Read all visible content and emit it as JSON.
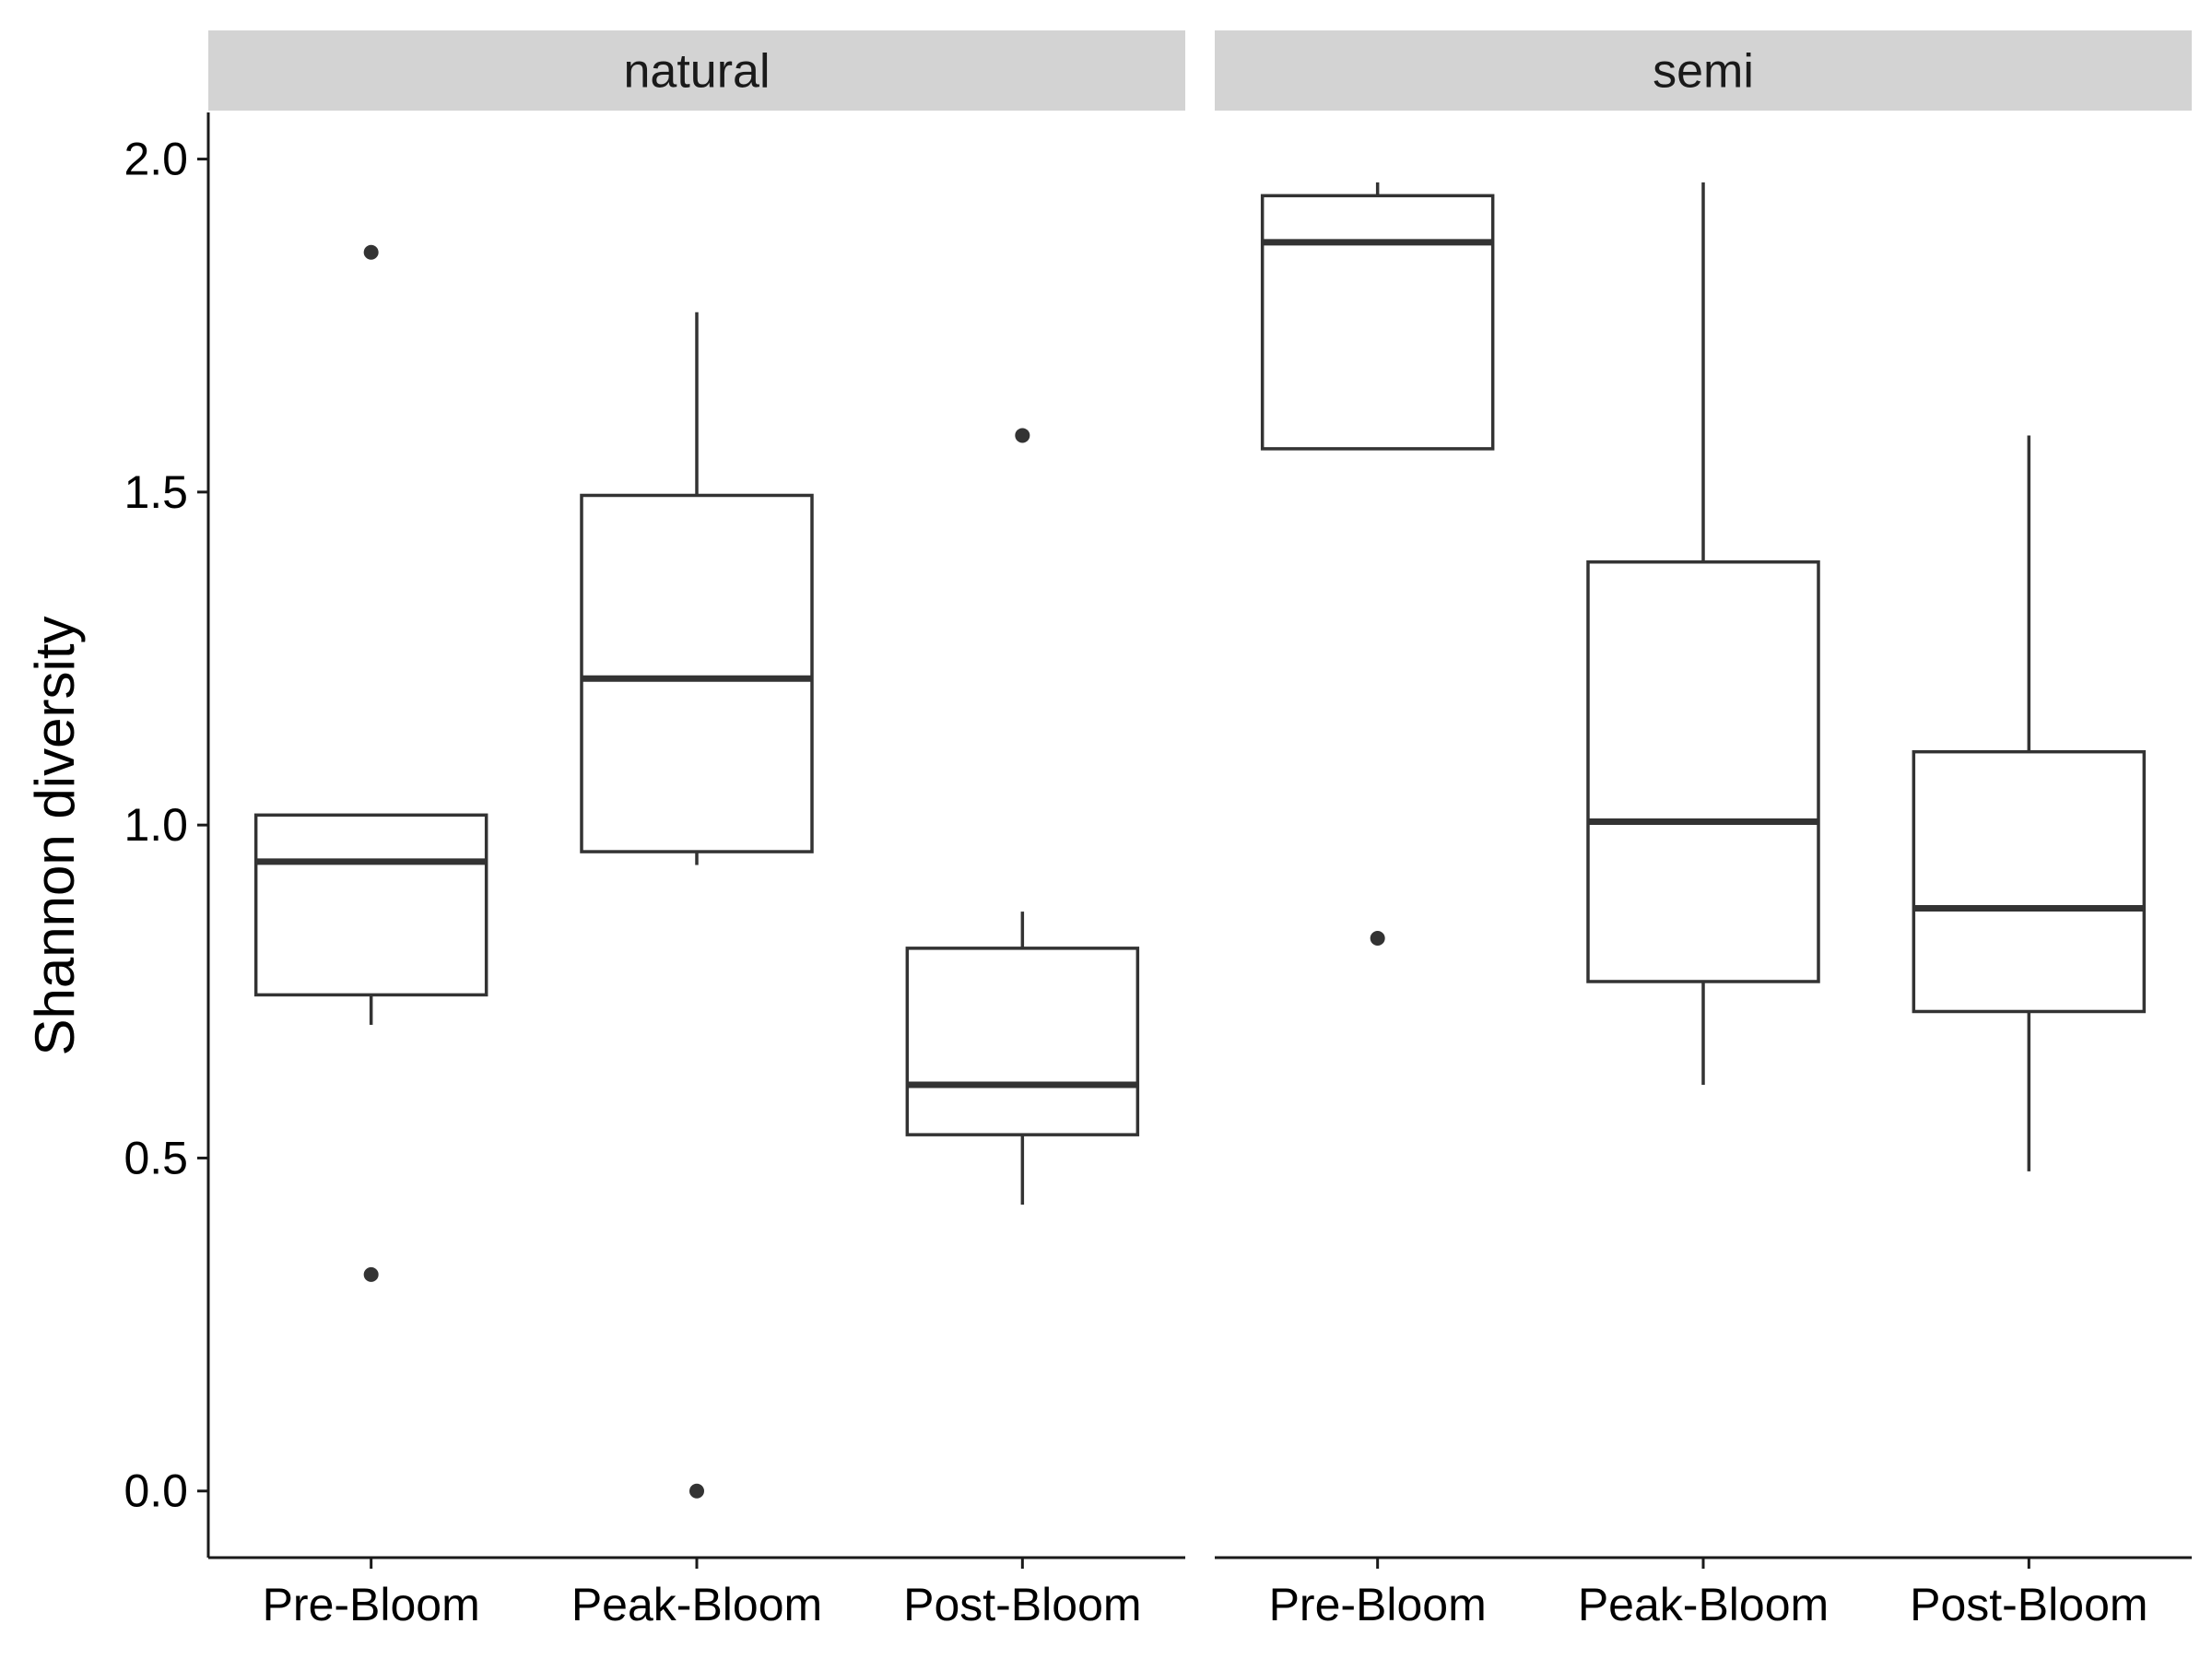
{
  "chart_data": {
    "type": "boxplot",
    "ylabel": "Shannon diversity",
    "xlabel": "",
    "ylim": [
      -0.1,
      2.07
    ],
    "yticks": [
      "0.0",
      "0.5",
      "1.0",
      "1.5",
      "2.0"
    ],
    "categories": [
      "Pre-Bloom",
      "Peak-Bloom",
      "Post-Bloom"
    ],
    "grid": false,
    "colors": {
      "box_stroke": "#333333",
      "box_fill": "#ffffff",
      "strip_fill": "#d3d3d3",
      "axis": "#1a1a1a"
    },
    "panels": [
      {
        "label": "natural",
        "boxes": [
          {
            "category": "Pre-Bloom",
            "whisker_low": 0.7,
            "q1": 0.745,
            "median": 0.945,
            "q3": 1.015,
            "whisker_high": 1.015,
            "outliers": [
              1.86,
              0.325
            ]
          },
          {
            "category": "Peak-Bloom",
            "whisker_low": 0.94,
            "q1": 0.96,
            "median": 1.22,
            "q3": 1.495,
            "whisker_high": 1.77,
            "outliers": [
              0.0
            ]
          },
          {
            "category": "Post-Bloom",
            "whisker_low": 0.43,
            "q1": 0.535,
            "median": 0.61,
            "q3": 0.815,
            "whisker_high": 0.87,
            "outliers": [
              1.585
            ]
          }
        ]
      },
      {
        "label": "semi",
        "boxes": [
          {
            "category": "Pre-Bloom",
            "whisker_low": 1.565,
            "q1": 1.565,
            "median": 1.875,
            "q3": 1.945,
            "whisker_high": 1.965,
            "outliers": [
              0.83
            ]
          },
          {
            "category": "Peak-Bloom",
            "whisker_low": 0.61,
            "q1": 0.765,
            "median": 1.005,
            "q3": 1.395,
            "whisker_high": 1.965,
            "outliers": []
          },
          {
            "category": "Post-Bloom",
            "whisker_low": 0.48,
            "q1": 0.72,
            "median": 0.875,
            "q3": 1.11,
            "whisker_high": 1.585,
            "outliers": []
          }
        ]
      }
    ]
  }
}
